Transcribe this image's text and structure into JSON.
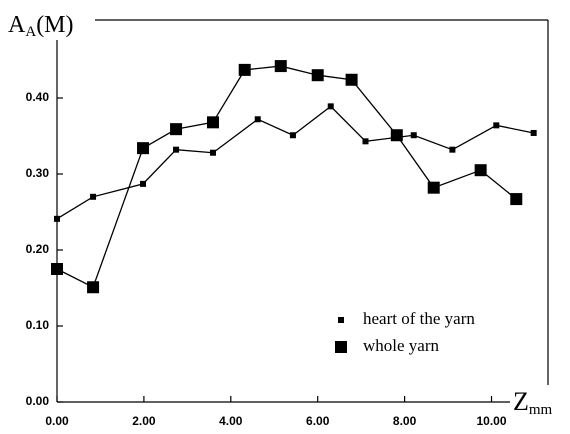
{
  "chart_data": {
    "type": "line",
    "y_label": "A",
    "y_label_sub": "A",
    "y_label_suffix": "(M)",
    "x_label": "Z",
    "x_label_sub": "mm",
    "xlim": [
      0,
      11.3
    ],
    "ylim": [
      0,
      0.5
    ],
    "xticks": [
      {
        "value": 0,
        "label": "0.00"
      },
      {
        "value": 2,
        "label": "2.00"
      },
      {
        "value": 4,
        "label": "4.00"
      },
      {
        "value": 6,
        "label": "6.00"
      },
      {
        "value": 8,
        "label": "8.00"
      },
      {
        "value": 10,
        "label": "10.00"
      }
    ],
    "yticks": [
      {
        "value": 0,
        "label": "0.00"
      },
      {
        "value": 0.1,
        "label": "0.10"
      },
      {
        "value": 0.2,
        "label": "0.20"
      },
      {
        "value": 0.3,
        "label": "0.30"
      },
      {
        "value": 0.4,
        "label": "0.40"
      }
    ],
    "series": [
      {
        "name": "heart of the yarn",
        "color": "#000000",
        "marker_size": 6,
        "x": [
          0,
          0.83,
          1.98,
          2.74,
          3.59,
          4.62,
          5.43,
          6.3,
          7.1,
          8.21,
          9.1,
          10.11,
          10.97
        ],
        "values": [
          0.241,
          0.27,
          0.287,
          0.332,
          0.328,
          0.372,
          0.351,
          0.389,
          0.343,
          0.351,
          0.332,
          0.364,
          0.354
        ]
      },
      {
        "name": "whole yarn",
        "color": "#000000",
        "marker_size": 12,
        "x": [
          0,
          0.83,
          1.98,
          2.74,
          3.59,
          4.32,
          5.15,
          6.0,
          6.78,
          7.82,
          8.67,
          9.75,
          10.57
        ],
        "values": [
          0.175,
          0.151,
          0.334,
          0.359,
          0.368,
          0.437,
          0.442,
          0.43,
          0.424,
          0.351,
          0.282,
          0.305,
          0.267
        ]
      }
    ]
  }
}
